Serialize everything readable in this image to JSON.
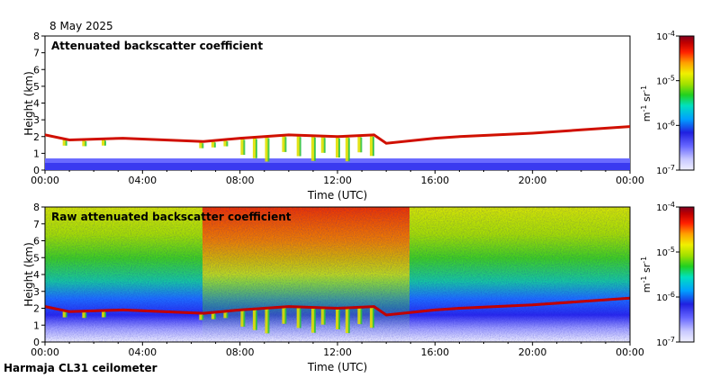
{
  "date_label": "8 May 2025",
  "footer_label": "Harmaja CL31 ceilometer",
  "colors": {
    "background": "#ffffff",
    "axis": "#000000",
    "scale": [
      "#f0f0ff",
      "#c8c8ff",
      "#6666ff",
      "#2020e0",
      "#00a0ff",
      "#00e0c0",
      "#20d020",
      "#a0e000",
      "#f0f000",
      "#ffa000",
      "#ff2000",
      "#c00000",
      "#800020"
    ]
  },
  "chart_data": [
    {
      "type": "heatmap",
      "title": "Attenuated backscatter coefficient",
      "xlabel": "Time (UTC)",
      "ylabel": "Height (km)",
      "xlim": [
        0,
        24
      ],
      "ylim": [
        0,
        8
      ],
      "x_ticks": [
        "00:00",
        "04:00",
        "08:00",
        "12:00",
        "16:00",
        "20:00",
        "00:00"
      ],
      "x_tick_values": [
        0,
        4,
        8,
        12,
        16,
        20,
        24
      ],
      "y_ticks": [
        "0",
        "1",
        "2",
        "3",
        "4",
        "5",
        "6",
        "7",
        "8"
      ],
      "colorbar": {
        "label": "m-1 sr-1",
        "ticks": [
          "10-4",
          "10-5",
          "10-6",
          "10-7"
        ]
      },
      "cloud_layer": {
        "time": [
          0.0,
          1.0,
          3.2,
          6.5,
          8.0,
          10.0,
          12.0,
          13.5,
          14.0,
          16.0,
          17.0,
          20.0,
          22.0,
          24.0
        ],
        "height_km": [
          2.1,
          1.8,
          1.9,
          1.7,
          1.9,
          2.1,
          2.0,
          2.1,
          1.6,
          1.9,
          2.0,
          2.2,
          2.4,
          2.6
        ]
      }
    },
    {
      "type": "heatmap",
      "title": "Raw attenuated backscatter coefficient",
      "xlabel": "Time (UTC)",
      "ylabel": "Height (km)",
      "xlim": [
        0,
        24
      ],
      "ylim": [
        0,
        8
      ],
      "x_ticks": [
        "00:00",
        "04:00",
        "08:00",
        "12:00",
        "16:00",
        "20:00",
        "00:00"
      ],
      "x_tick_values": [
        0,
        4,
        8,
        12,
        16,
        20,
        24
      ],
      "y_ticks": [
        "0",
        "1",
        "2",
        "3",
        "4",
        "5",
        "6",
        "7",
        "8"
      ],
      "colorbar": {
        "label": "m-1 sr-1",
        "ticks": [
          "10-4",
          "10-5",
          "10-6",
          "10-7"
        ]
      },
      "cloud_layer": {
        "time": [
          0.0,
          1.0,
          3.2,
          6.5,
          8.0,
          10.0,
          12.0,
          13.5,
          14.0,
          16.0,
          17.0,
          20.0,
          22.0,
          24.0
        ],
        "height_km": [
          2.1,
          1.8,
          1.9,
          1.7,
          1.9,
          2.1,
          2.0,
          2.1,
          1.6,
          1.9,
          2.0,
          2.2,
          2.4,
          2.6
        ]
      }
    }
  ]
}
